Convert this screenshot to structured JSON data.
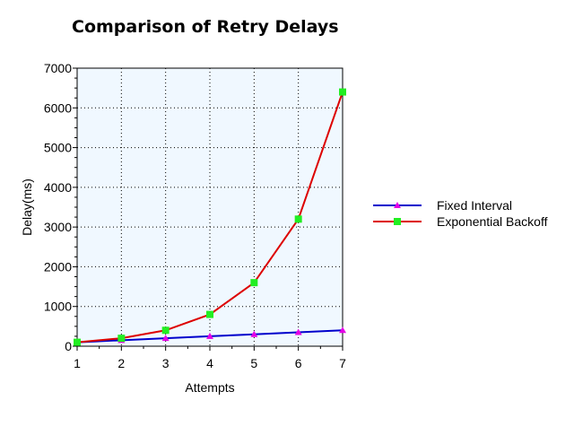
{
  "chart_data": {
    "type": "line",
    "title": "Comparison of Retry Delays",
    "xlabel": "Attempts",
    "ylabel": "Delay(ms)",
    "x": [
      1,
      2,
      3,
      4,
      5,
      6,
      7
    ],
    "xlim": [
      1,
      7
    ],
    "ylim": [
      0,
      7000
    ],
    "yticks": [
      0,
      1000,
      2000,
      3000,
      4000,
      5000,
      6000,
      7000
    ],
    "grid": true,
    "legend_position": "right",
    "plot_background": "#f0f8ff",
    "series": [
      {
        "name": "Fixed Interval",
        "values": [
          100,
          150,
          200,
          250,
          300,
          350,
          400
        ],
        "line_color": "#0000cc",
        "marker": "triangle",
        "marker_color": "#e600e6"
      },
      {
        "name": "Exponential Backoff",
        "values": [
          100,
          200,
          400,
          800,
          1600,
          3200,
          6400
        ],
        "line_color": "#dd0000",
        "marker": "square",
        "marker_color": "#22ee22"
      }
    ]
  }
}
